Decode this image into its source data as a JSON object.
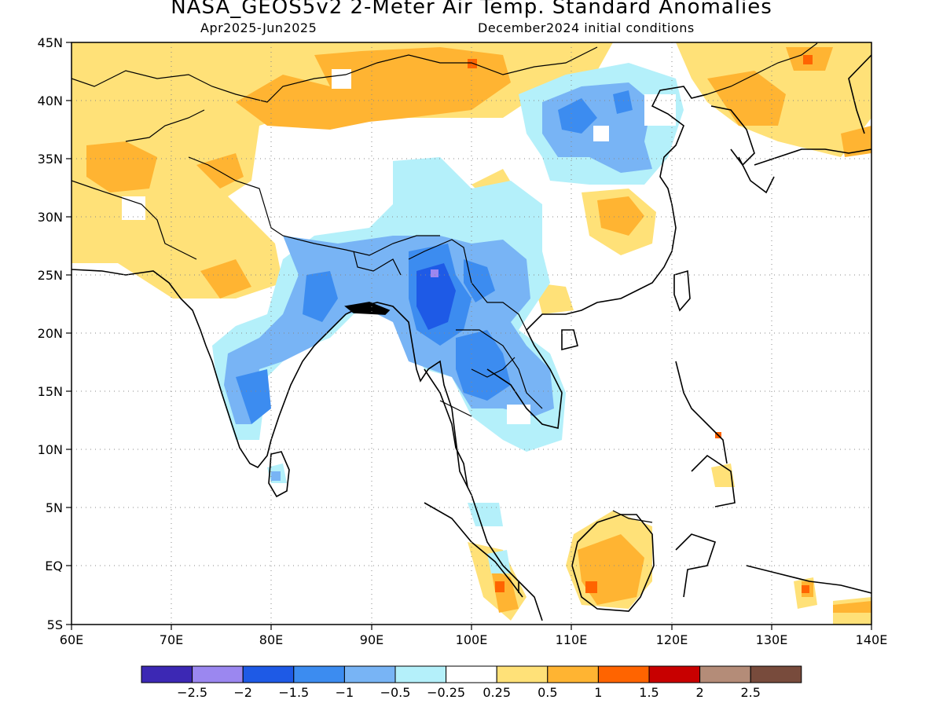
{
  "title": "NASA_GEOS5v2 2-Meter Air Temp. Standard Anomalies",
  "subtitle_left": "Apr2025-Jun2025",
  "subtitle_right": "December2024 initial conditions",
  "lat_labels": [
    "45N",
    "40N",
    "35N",
    "30N",
    "25N",
    "20N",
    "15N",
    "10N",
    "5N",
    "EQ",
    "5S"
  ],
  "lon_labels": [
    "60E",
    "70E",
    "80E",
    "90E",
    "100E",
    "110E",
    "120E",
    "130E",
    "140E"
  ],
  "colorbar": {
    "colors": [
      "#3c28b4",
      "#9b87f0",
      "#1e5ae6",
      "#3c8cf0",
      "#78b4f5",
      "#b4f0fa",
      "#ffffff",
      "#ffe178",
      "#ffb432",
      "#ff6400",
      "#c80000",
      "#b48c78",
      "#784b3c"
    ],
    "labels": [
      "-2.5",
      "-2",
      "-1.5",
      "-1",
      "-0.5",
      "-0.25",
      "0.25",
      "0.5",
      "1",
      "1.5",
      "2",
      "2.5"
    ]
  },
  "colors": {
    "cool_light": "#b4f0fa",
    "cool_mid": "#78b4f5",
    "cool_strong": "#3c8cf0",
    "warm_light": "#ffe178",
    "warm_mid": "#ffb432",
    "warm_strong": "#ff6400"
  }
}
